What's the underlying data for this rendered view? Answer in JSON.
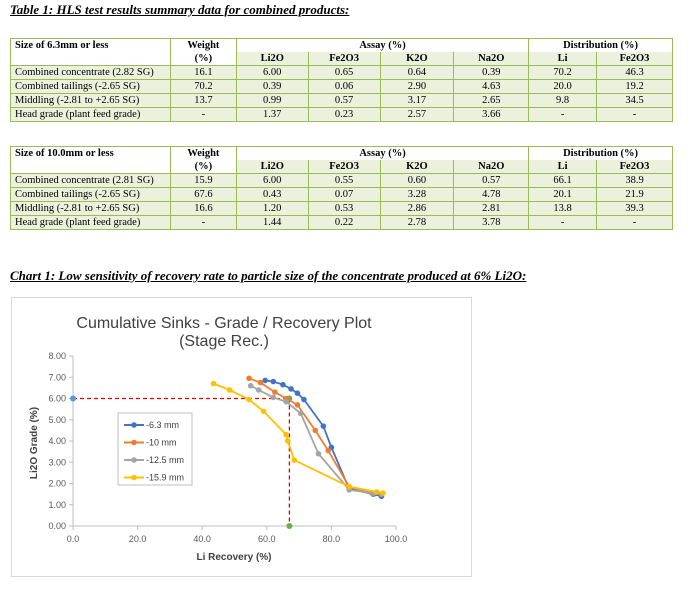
{
  "table1": {
    "caption": "Table 1: HLS test results summary data for combined products:",
    "size_label": "Size of 6.3mm or less",
    "weight_label": "Weight",
    "weight_unit": "(%)",
    "assay_label": "Assay (%)",
    "distribution_label": "Distribution (%)",
    "subcols": [
      "Li2O",
      "Fe2O3",
      "K2O",
      "Na2O",
      "Li",
      "Fe2O3"
    ],
    "rows": [
      [
        "Combined concentrate (2.82 SG)",
        "16.1",
        "6.00",
        "0.65",
        "0.64",
        "0.39",
        "70.2",
        "46.3"
      ],
      [
        "Combined tailings (-2.65 SG)",
        "70.2",
        "0.39",
        "0.06",
        "2.90",
        "4.63",
        "20.0",
        "19.2"
      ],
      [
        "Middling (-2.81 to +2.65 SG)",
        "13.7",
        "0.99",
        "0.57",
        "3.17",
        "2.65",
        "9.8",
        "34.5"
      ],
      [
        "Head grade (plant feed grade)",
        "-",
        "1.37",
        "0.23",
        "2.57",
        "3.66",
        "-",
        "-"
      ]
    ]
  },
  "table2": {
    "size_label": "Size of 10.0mm or less",
    "weight_label": "Weight",
    "weight_unit": "(%)",
    "assay_label": "Assay (%)",
    "distribution_label": "Distribution (%)",
    "subcols": [
      "Li2O",
      "Fe2O3",
      "K2O",
      "Na2O",
      "Li",
      "Fe2O3"
    ],
    "rows": [
      [
        "Combined concentrate (2.81 SG)",
        "15.9",
        "6.00",
        "0.55",
        "0.60",
        "0.57",
        "66.1",
        "38.9"
      ],
      [
        "Combined tailings (-2.65 SG)",
        "67.6",
        "0.43",
        "0.07",
        "3.28",
        "4.78",
        "20.1",
        "21.9"
      ],
      [
        "Middling (-2.81 to +2.65 SG)",
        "16.6",
        "1.20",
        "0.53",
        "2.86",
        "2.81",
        "13.8",
        "39.3"
      ],
      [
        "Head grade (plant feed grade)",
        "-",
        "1.44",
        "0.22",
        "2.78",
        "3.78",
        "-",
        "-"
      ]
    ]
  },
  "chart_caption": "Chart 1: Low sensitivity of recovery rate to particle size of the concentrate produced at 6% Li2O:",
  "chart_data": {
    "type": "line",
    "title": "Cumulative Sinks - Grade / Recovery Plot",
    "subtitle": "(Stage Rec.)",
    "xlabel": "Li Recovery (%)",
    "ylabel": "Li2O Grade (%)",
    "xlim": [
      0,
      100
    ],
    "ylim": [
      0,
      8
    ],
    "xticks": [
      "0.0",
      "20.0",
      "40.0",
      "60.0",
      "80.0",
      "100.0"
    ],
    "yticks": [
      "0.00",
      "1.00",
      "2.00",
      "3.00",
      "4.00",
      "5.00",
      "6.00",
      "7.00",
      "8.00"
    ],
    "grid": false,
    "legend_position": "center-left",
    "colors": [
      "#4472c4",
      "#ed7d31",
      "#a5a5a5",
      "#ffc000"
    ],
    "series": [
      {
        "name": "-6.3 mm",
        "x": [
          59.5,
          62,
          65,
          67.5,
          69.5,
          71.5,
          77.5,
          80,
          85.5,
          93,
          95.5
        ],
        "y": [
          6.85,
          6.8,
          6.65,
          6.45,
          6.25,
          5.95,
          4.7,
          3.7,
          1.75,
          1.5,
          1.4
        ]
      },
      {
        "name": "-10 mm",
        "x": [
          54.5,
          58,
          62.5,
          66,
          69.5,
          75,
          79,
          85.5,
          92.5,
          95.5
        ],
        "y": [
          6.95,
          6.75,
          6.3,
          6.0,
          5.7,
          4.5,
          3.55,
          1.85,
          1.55,
          1.5
        ]
      },
      {
        "name": "-12.5 mm",
        "x": [
          55,
          57.5,
          62,
          66,
          70.5,
          76,
          85.5,
          93,
          95.5
        ],
        "y": [
          6.6,
          6.4,
          6.05,
          5.85,
          5.3,
          3.4,
          1.7,
          1.55,
          1.5
        ]
      },
      {
        "name": "-15.9 mm",
        "x": [
          43.5,
          48.5,
          54.5,
          59,
          66,
          66.5,
          68.5,
          85.5,
          94,
          96
        ],
        "y": [
          6.7,
          6.4,
          5.95,
          5.4,
          4.3,
          4.0,
          3.1,
          1.85,
          1.6,
          1.55
        ]
      }
    ],
    "reference_lines": {
      "x": 67,
      "y": 6.0,
      "color": "#e00000"
    },
    "reference_points": {
      "on_y_axis": 6.0,
      "on_x_axis": 67
    }
  }
}
